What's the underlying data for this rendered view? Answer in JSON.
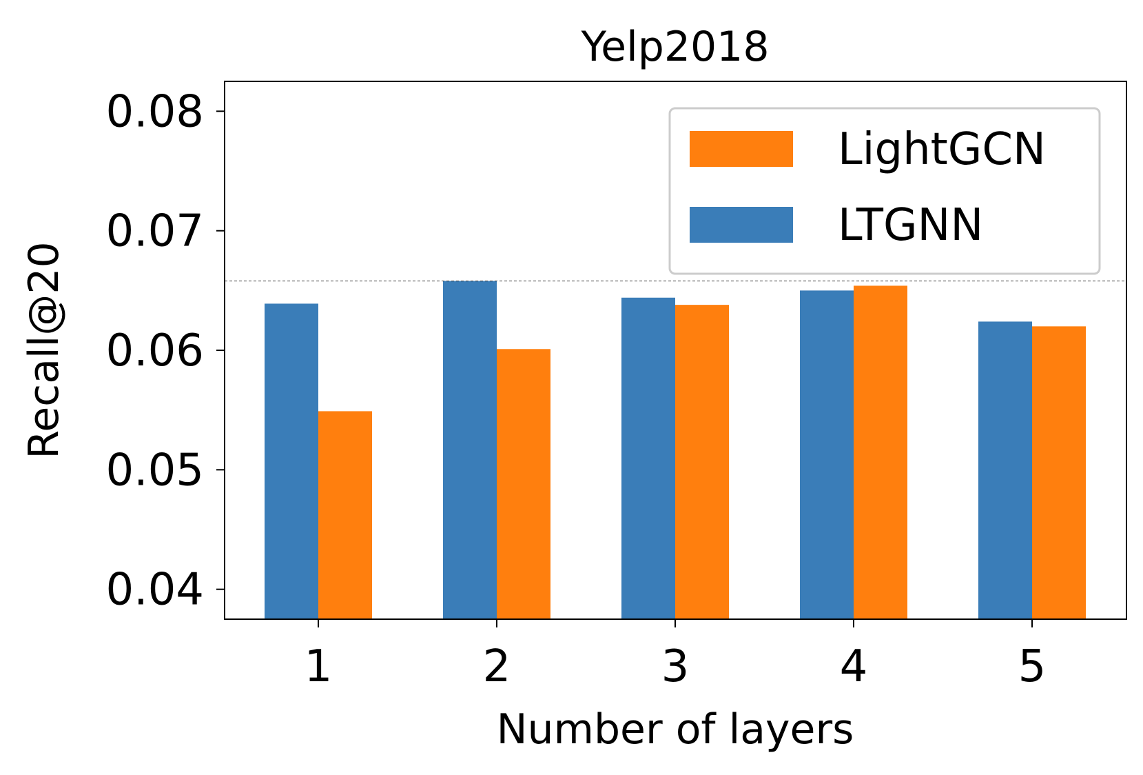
{
  "chart_data": {
    "type": "bar",
    "title": "Yelp2018",
    "xlabel": "Number of layers",
    "ylabel": "Recall@20",
    "categories": [
      "1",
      "2",
      "3",
      "4",
      "5"
    ],
    "ylim": [
      0.0375,
      0.0825
    ],
    "yticks": [
      0.04,
      0.05,
      0.06,
      0.07,
      0.08
    ],
    "ytick_labels": [
      "0.04",
      "0.05",
      "0.06",
      "0.07",
      "0.08"
    ],
    "reference_line": 0.0658,
    "legend_position": "top-right",
    "series": [
      {
        "name": "LTGNN",
        "color": "#3a7db8",
        "values": [
          0.0639,
          0.0658,
          0.0644,
          0.065,
          0.0624
        ]
      },
      {
        "name": "LightGCN",
        "color": "#ff7f0e",
        "values": [
          0.0549,
          0.0601,
          0.0638,
          0.0654,
          0.062
        ]
      }
    ],
    "legend_order": [
      "LightGCN",
      "LTGNN"
    ]
  }
}
